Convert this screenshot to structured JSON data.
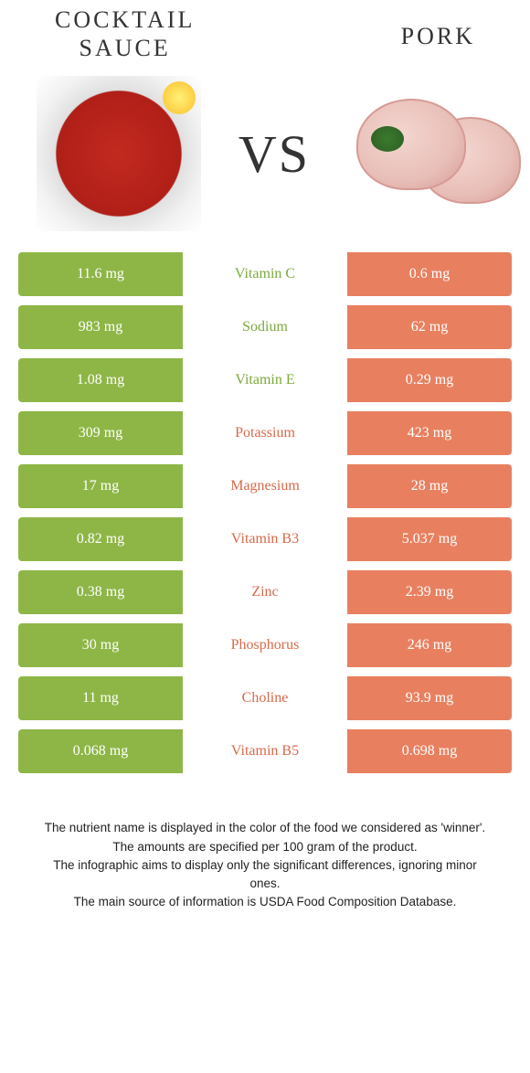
{
  "colors": {
    "left_bar": "#8eb646",
    "right_bar": "#e88060",
    "left_text": "#7da93c",
    "right_text": "#d86a4a",
    "background": "#ffffff"
  },
  "header": {
    "left_title": "Cocktail\nsauce",
    "right_title": "Pork",
    "vs_label": "VS"
  },
  "rows": [
    {
      "name": "Vitamin C",
      "left": "11.6 mg",
      "right": "0.6 mg",
      "winner": "left"
    },
    {
      "name": "Sodium",
      "left": "983 mg",
      "right": "62 mg",
      "winner": "left"
    },
    {
      "name": "Vitamin E",
      "left": "1.08 mg",
      "right": "0.29 mg",
      "winner": "left"
    },
    {
      "name": "Potassium",
      "left": "309 mg",
      "right": "423 mg",
      "winner": "right"
    },
    {
      "name": "Magnesium",
      "left": "17 mg",
      "right": "28 mg",
      "winner": "right"
    },
    {
      "name": "Vitamin B3",
      "left": "0.82 mg",
      "right": "5.037 mg",
      "winner": "right"
    },
    {
      "name": "Zinc",
      "left": "0.38 mg",
      "right": "2.39 mg",
      "winner": "right"
    },
    {
      "name": "Phosphorus",
      "left": "30 mg",
      "right": "246 mg",
      "winner": "right"
    },
    {
      "name": "Choline",
      "left": "11 mg",
      "right": "93.9 mg",
      "winner": "right"
    },
    {
      "name": "Vitamin B5",
      "left": "0.068 mg",
      "right": "0.698 mg",
      "winner": "right"
    }
  ],
  "footnotes": [
    "The nutrient name is displayed in the color of the food we considered as 'winner'.",
    "The amounts are specified per 100 gram of the product.",
    "The infographic aims to display only the significant differences, ignoring minor ones.",
    "The main source of information is USDA Food Composition Database."
  ]
}
